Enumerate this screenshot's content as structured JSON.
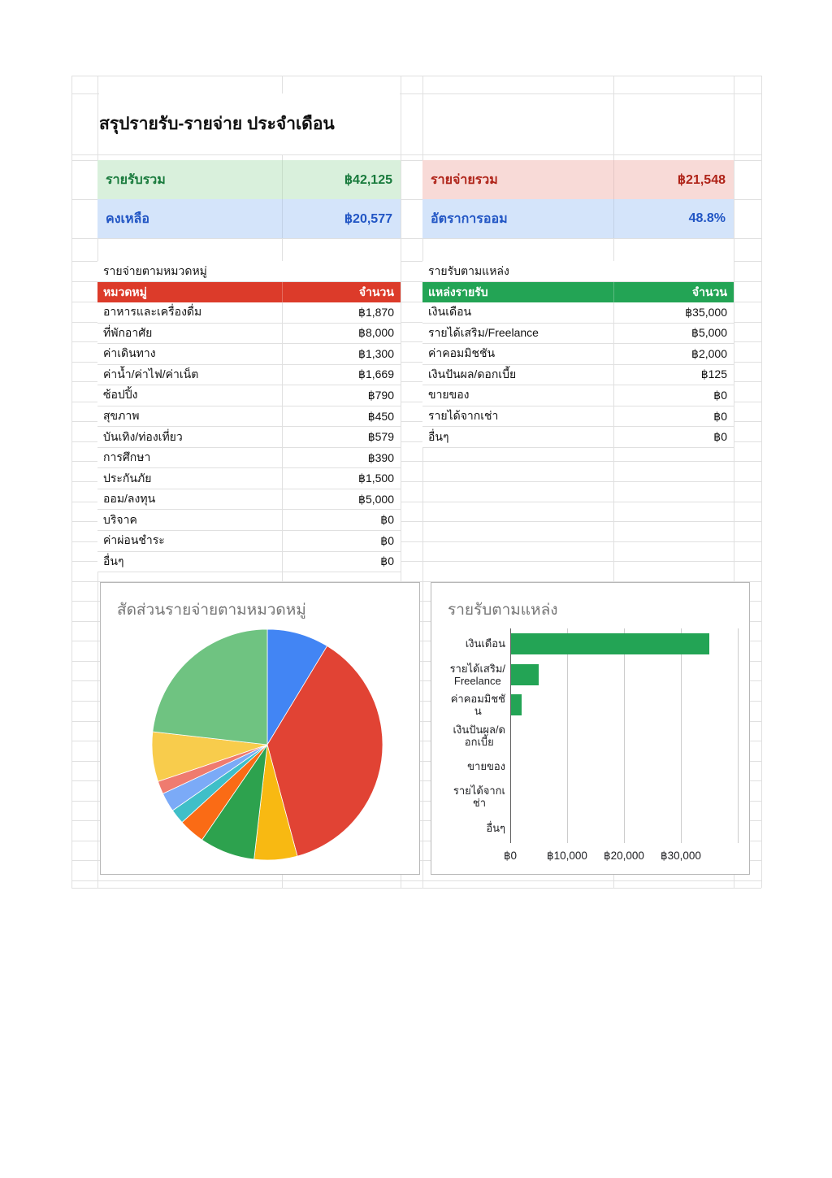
{
  "sheet_title": "สรุปรายรับ-รายจ่าย ประจำเดือน",
  "summary": {
    "income_total_label": "รายรับรวม",
    "income_total_value": "฿42,125",
    "expense_total_label": "รายจ่ายรวม",
    "expense_total_value": "฿21,548",
    "balance_label": "คงเหลือ",
    "balance_value": "฿20,577",
    "savings_rate_label": "อัตราการออม",
    "savings_rate_value": "48.8%"
  },
  "expense_table": {
    "section_label": "รายจ่ายตามหมวดหมู่",
    "col_category": "หมวดหมู่",
    "col_amount": "จำนวน",
    "rows": [
      {
        "label": "อาหารและเครื่องดื่ม",
        "value": "฿1,870"
      },
      {
        "label": "ที่พักอาศัย",
        "value": "฿8,000"
      },
      {
        "label": "ค่าเดินทาง",
        "value": "฿1,300"
      },
      {
        "label": "ค่าน้ำ/ค่าไฟ/ค่าเน็ต",
        "value": "฿1,669"
      },
      {
        "label": "ซ้อปปิ้ง",
        "value": "฿790"
      },
      {
        "label": "สุขภาพ",
        "value": "฿450"
      },
      {
        "label": "บันเทิง/ท่องเที่ยว",
        "value": "฿579"
      },
      {
        "label": "การศึกษา",
        "value": "฿390"
      },
      {
        "label": "ประกันภัย",
        "value": "฿1,500"
      },
      {
        "label": "ออม/ลงทุน",
        "value": "฿5,000"
      },
      {
        "label": "บริจาค",
        "value": "฿0"
      },
      {
        "label": "ค่าผ่อนชำระ",
        "value": "฿0"
      },
      {
        "label": "อื่นๆ",
        "value": "฿0"
      }
    ]
  },
  "income_table": {
    "section_label": "รายรับตามแหล่ง",
    "col_source": "แหล่งรายรับ",
    "col_amount": "จำนวน",
    "rows": [
      {
        "label": "เงินเดือน",
        "value": "฿35,000"
      },
      {
        "label": "รายได้เสริม/Freelance",
        "value": "฿5,000"
      },
      {
        "label": "ค่าคอมมิชชัน",
        "value": "฿2,000"
      },
      {
        "label": "เงินปันผล/ดอกเบี้ย",
        "value": "฿125"
      },
      {
        "label": "ขายของ",
        "value": "฿0"
      },
      {
        "label": "รายได้จากเช่า",
        "value": "฿0"
      },
      {
        "label": "อื่นๆ",
        "value": "฿0"
      }
    ]
  },
  "chart_data": [
    {
      "type": "pie",
      "title": "สัดส่วนรายจ่ายตามหมวดหมู่",
      "categories": [
        "อาหารและเครื่องดื่ม",
        "ที่พักอาศัย",
        "ค่าเดินทาง",
        "ค่าน้ำ/ค่าไฟ/ค่าเน็ต",
        "ซ้อปปิ้ง",
        "สุขภาพ",
        "บันเทิง/ท่องเที่ยว",
        "การศึกษา",
        "ประกันภัย",
        "ออม/ลงทุน",
        "บริจาค",
        "ค่าผ่อนชำระ",
        "อื่นๆ"
      ],
      "values": [
        1870,
        8000,
        1300,
        1669,
        790,
        450,
        579,
        390,
        1500,
        5000,
        0,
        0,
        0
      ],
      "total": 21548,
      "colors": [
        "#4285F4",
        "#E14334",
        "#F8B912",
        "#2DA24E",
        "#FA6B15",
        "#3FBFC8",
        "#7BAAF7",
        "#EF7B6F",
        "#F8CC4C",
        "#6FC381",
        "#BDBDBD",
        "#BDBDBD",
        "#BDBDBD"
      ],
      "legend": "none",
      "start_angle_deg": 0
    },
    {
      "type": "bar",
      "orientation": "horizontal",
      "title": "รายรับตามแหล่ง",
      "categories": [
        "เงินเดือน",
        "รายได้เสริม/Freelance",
        "ค่าคอมมิชชัน",
        "เงินปันผล/ดอกเบี้ย",
        "ขายของ",
        "รายได้จากเช่า",
        "อื่นๆ"
      ],
      "label_lines": [
        [
          "เงินเดือน"
        ],
        [
          "รายได้เสริม/",
          "Freelance"
        ],
        [
          "ค่าคอมมิชชั",
          "น"
        ],
        [
          "เงินปันผล/ด",
          "อกเบี้ย"
        ],
        [
          "ขายของ"
        ],
        [
          "รายได้จากเ",
          "ช่า"
        ],
        [
          "อื่นๆ"
        ]
      ],
      "values": [
        35000,
        5000,
        2000,
        125,
        0,
        0,
        0
      ],
      "xlim": [
        0,
        40000
      ],
      "tick_values": [
        0,
        10000,
        20000,
        30000
      ],
      "tick_labels": [
        "฿0",
        "฿10,000",
        "฿20,000",
        "฿30,000"
      ],
      "bar_color": "#23A455",
      "grid": true,
      "legend": "none"
    }
  ],
  "colors": {
    "summary_income_bg": "#D9F0DC",
    "summary_income_text": "#187A3C",
    "summary_expense_bg": "#F8DAD7",
    "summary_expense_text": "#AF2318",
    "summary_blue_bg": "#D4E4FA",
    "summary_blue_text": "#2155C4",
    "expense_header_bg": "#DC3B2A",
    "income_header_bg": "#23A455",
    "header_text": "#FFFFFF",
    "grid_line": "#E0E0E0",
    "chart_title": "#757575",
    "card_border": "#B7B7B7"
  }
}
